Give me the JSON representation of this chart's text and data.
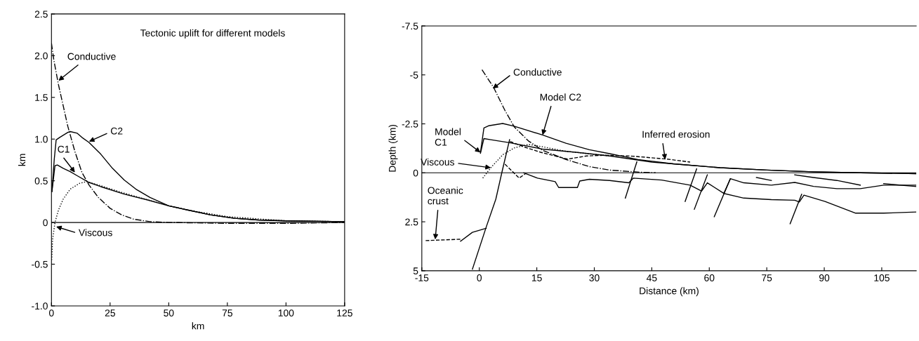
{
  "chart_data": [
    {
      "type": "line",
      "title": "Tectonic uplift for different models",
      "xlabel": "km",
      "ylabel": "km",
      "xlim": [
        0,
        125
      ],
      "xticks": [
        0,
        25,
        50,
        75,
        100,
        125
      ],
      "ylim": [
        -1.0,
        2.5
      ],
      "yticks": [
        {
          "value": -1.0,
          "label": "-1.0"
        },
        {
          "value": -0.5,
          "label": "-0.5"
        },
        0,
        {
          "value": 0.5,
          "label": "0.5"
        },
        {
          "value": 1.0,
          "label": "1.0"
        },
        {
          "value": 1.5,
          "label": "1.5"
        },
        {
          "value": 2.0,
          "label": "2.0"
        },
        {
          "value": 2.5,
          "label": "2.5"
        }
      ],
      "grid": false,
      "legend": false,
      "ref_lines": [
        {
          "axis": "y",
          "value": 0,
          "color": "#000000",
          "line_style": "solid"
        }
      ],
      "series": [
        {
          "color": "#000000",
          "line_style": "solid",
          "x": [
            0.2,
            1.2,
            2,
            3.5,
            7,
            8,
            11,
            13,
            16,
            21,
            26,
            31,
            36,
            42,
            46,
            50,
            58,
            68,
            78,
            88,
            100,
            125
          ],
          "values": [
            0.37,
            0.76,
            0.99,
            1.02,
            1.08,
            1.09,
            1.07,
            1.02,
            0.96,
            0.82,
            0.65,
            0.51,
            0.4,
            0.3,
            0.25,
            0.2,
            0.15,
            0.09,
            0.05,
            0.03,
            0.02,
            0.01
          ]
        },
        {
          "color": "#000000",
          "line_style": "solid",
          "x": [
            0.2,
            1.5,
            2.5,
            5,
            8,
            11,
            16,
            21,
            31,
            41,
            50,
            58,
            68,
            78,
            88,
            100,
            125
          ],
          "values": [
            0.37,
            0.68,
            0.69,
            0.65,
            0.61,
            0.56,
            0.48,
            0.43,
            0.34,
            0.27,
            0.2,
            0.15,
            0.09,
            0.05,
            0.03,
            0.02,
            0.01
          ]
        },
        {
          "color": "#000000",
          "line_style": "dotted",
          "x": [
            0.1,
            0.5,
            1.5,
            3,
            5,
            8,
            12,
            15,
            20,
            30,
            40,
            50,
            60,
            75,
            100,
            125
          ],
          "values": [
            -0.45,
            -0.2,
            0,
            0.15,
            0.28,
            0.4,
            0.47,
            0.49,
            0.45,
            0.36,
            0.28,
            0.2,
            0.14,
            0.07,
            0.02,
            0.01
          ]
        },
        {
          "color": "#000000",
          "line_style": "dashdot",
          "x": [
            0,
            1,
            3,
            5,
            7,
            10,
            13,
            16,
            20,
            25,
            30,
            35,
            42,
            50,
            75,
            100,
            125
          ],
          "values": [
            2.15,
            1.95,
            1.65,
            1.4,
            1.15,
            0.85,
            0.6,
            0.45,
            0.3,
            0.17,
            0.09,
            0.04,
            0.01,
            0,
            -0.01,
            -0.01,
            0
          ]
        }
      ],
      "annotations": [
        {
          "text": "Conductive",
          "x": 3,
          "y": 1.7
        },
        {
          "text": "C2",
          "x": 16,
          "y": 0.97
        },
        {
          "text": "C1",
          "x": 10,
          "y": 0.6
        },
        {
          "text": "Viscous",
          "x": 2,
          "y": -0.05
        }
      ]
    },
    {
      "type": "line",
      "xlabel": "Distance (km)",
      "ylabel": "Depth (km)",
      "xlim": [
        -15,
        114
      ],
      "xticks": [
        -15,
        0,
        15,
        30,
        45,
        60,
        75,
        90,
        105
      ],
      "ylim": [
        5,
        -7.5
      ],
      "yticks": [
        5,
        2.5,
        0,
        -2.5,
        -5,
        -7.5
      ],
      "grid": false,
      "legend": false,
      "ref_lines": [
        {
          "axis": "y",
          "value": 0,
          "color": "#000000",
          "line_style": "solid"
        }
      ],
      "series": [
        {
          "color": "#000000",
          "line_style": "dashdot",
          "x": [
            0.7,
            3.7,
            6.7,
            9.1,
            12.8,
            16.5,
            22.6,
            28.7,
            34,
            42,
            46
          ],
          "values": [
            -5.26,
            -4.37,
            -3.18,
            -2.35,
            -1.63,
            -1.15,
            -0.68,
            -0.32,
            -0.14,
            -0.03,
            0
          ]
        },
        {
          "color": "#000000",
          "line_style": "solid",
          "x": [
            0.3,
            1.2,
            2.4,
            6.1,
            9.1,
            16.5,
            22.6,
            28.7,
            34,
            41.4,
            50.6,
            62.8,
            75,
            87.2,
            99.4,
            114
          ],
          "values": [
            -1.04,
            -2.29,
            -2.4,
            -2.52,
            -2.38,
            -1.93,
            -1.51,
            -1.18,
            -0.98,
            -0.68,
            -0.46,
            -0.26,
            -0.14,
            -0.05,
            0,
            0.04
          ]
        },
        {
          "color": "#000000",
          "line_style": "solid",
          "x": [
            0.3,
            1.2,
            3,
            7.9,
            16.5,
            25.6,
            34,
            45,
            50.6,
            62.8,
            75,
            87.2,
            99.4,
            114
          ],
          "values": [
            -1.0,
            -1.75,
            -1.69,
            -1.54,
            -1.21,
            -1.04,
            -0.86,
            -0.55,
            -0.46,
            -0.26,
            -0.14,
            -0.05,
            0,
            0.04
          ]
        },
        {
          "color": "#000000",
          "line_style": "dotted",
          "x": [
            0.9,
            3,
            6.1,
            9.1,
            12.8,
            16.5,
            22.6,
            34
          ],
          "values": [
            0.27,
            -0.26,
            -0.92,
            -1.27,
            -1.45,
            -1.33,
            -1.1,
            -0.86
          ]
        },
        {
          "color": "#000000",
          "line_style": "dashed",
          "x": [
            8,
            12,
            16,
            23,
            28,
            33,
            40,
            49,
            55
          ],
          "values": [
            -1.6,
            -1.3,
            -1.05,
            -0.7,
            -0.86,
            -0.9,
            -0.85,
            -0.7,
            -0.55
          ]
        },
        {
          "color": "#000000",
          "line_style": "dashed",
          "x": [
            6.7,
            10.4,
            12
          ],
          "values": [
            -0.44,
            0.27,
            0.05
          ]
        },
        {
          "color": "#000000",
          "line_style": "dashed",
          "x": [
            -14,
            -4.9
          ],
          "values": [
            3.46,
            3.39
          ]
        },
        {
          "color": "#000000",
          "line_style": "solid",
          "x": [
            -4.9,
            -1.8,
            1.8
          ],
          "values": [
            3.49,
            3.04,
            2.83
          ]
        },
        {
          "color": "#000000",
          "line_style": "solid",
          "x": [
            -1.8,
            1.8,
            4.3,
            6.1,
            7.9
          ],
          "values": [
            4.92,
            2.77,
            1.35,
            -0.2,
            -1.69
          ]
        },
        {
          "color": "#000000",
          "line_style": "solid",
          "x": [
            11.6,
            15.2,
            19.8,
            20.7,
            22.6,
            25.6,
            26.2,
            28.7,
            34,
            39,
            40.2,
            47.6,
            55,
            58,
            59.5,
            63.8,
            65.5,
            69,
            76.2,
            82.3,
            87.2,
            93.3,
            99.4,
            105.5,
            114
          ],
          "values": [
            0,
            0.27,
            0.45,
            0.75,
            0.75,
            0.75,
            0.42,
            0.33,
            0.39,
            0.51,
            0.27,
            0.37,
            0.63,
            0.93,
            0.51,
            1.05,
            0.3,
            0.51,
            0.63,
            0.49,
            0.69,
            0.81,
            0.81,
            0.63,
            0.63
          ]
        },
        {
          "color": "#000000",
          "line_style": "solid",
          "x": [
            63.8,
            69,
            76.2,
            82.3,
            83.5,
            84.7,
            90.2,
            98.2,
            105.5,
            114
          ],
          "values": [
            1.05,
            1.29,
            1.37,
            1.4,
            1.49,
            1.14,
            1.46,
            2.06,
            2.06,
            2.0
          ]
        },
        {
          "color": "#000000",
          "line_style": "solid",
          "x": [
            41.1,
            38.1
          ],
          "values": [
            -0.56,
            1.29
          ]
        },
        {
          "color": "#000000",
          "line_style": "solid",
          "x": [
            56.7,
            53.7
          ],
          "values": [
            -0.2,
            1.46
          ]
        },
        {
          "color": "#000000",
          "line_style": "solid",
          "x": [
            59.5,
            56.1
          ],
          "values": [
            0.1,
            1.86
          ]
        },
        {
          "color": "#000000",
          "line_style": "solid",
          "x": [
            65.5,
            61.3
          ],
          "values": [
            0.3,
            2.24
          ]
        },
        {
          "color": "#000000",
          "line_style": "solid",
          "x": [
            84.1,
            81.1
          ],
          "values": [
            1.1,
            2.6
          ]
        },
        {
          "color": "#000000",
          "line_style": "solid",
          "x": [
            72.3,
            76.2
          ],
          "values": [
            0.24,
            0.39
          ]
        },
        {
          "color": "#000000",
          "line_style": "solid",
          "x": [
            82.3,
            87.2,
            93.3,
            99.4
          ],
          "values": [
            0.1,
            0.24,
            0.39,
            0.63
          ]
        },
        {
          "color": "#000000",
          "line_style": "solid",
          "x": [
            105.5,
            114
          ],
          "values": [
            0.55,
            0.7
          ]
        }
      ],
      "annotations": [
        {
          "text": "Conductive",
          "x": 3.5,
          "y": -4.3
        },
        {
          "text": "Model C2",
          "x": 16.5,
          "y": -1.93
        },
        {
          "text": "Model\nC1",
          "x": 0.3,
          "y": -1.04
        },
        {
          "text": "Viscous",
          "x": 3,
          "y": -0.26
        },
        {
          "text": "Oceanic\ncrust",
          "x": -11.5,
          "y": 3.4
        },
        {
          "text": "Inferred erosion",
          "x": 48.5,
          "y": -0.68
        }
      ]
    }
  ]
}
